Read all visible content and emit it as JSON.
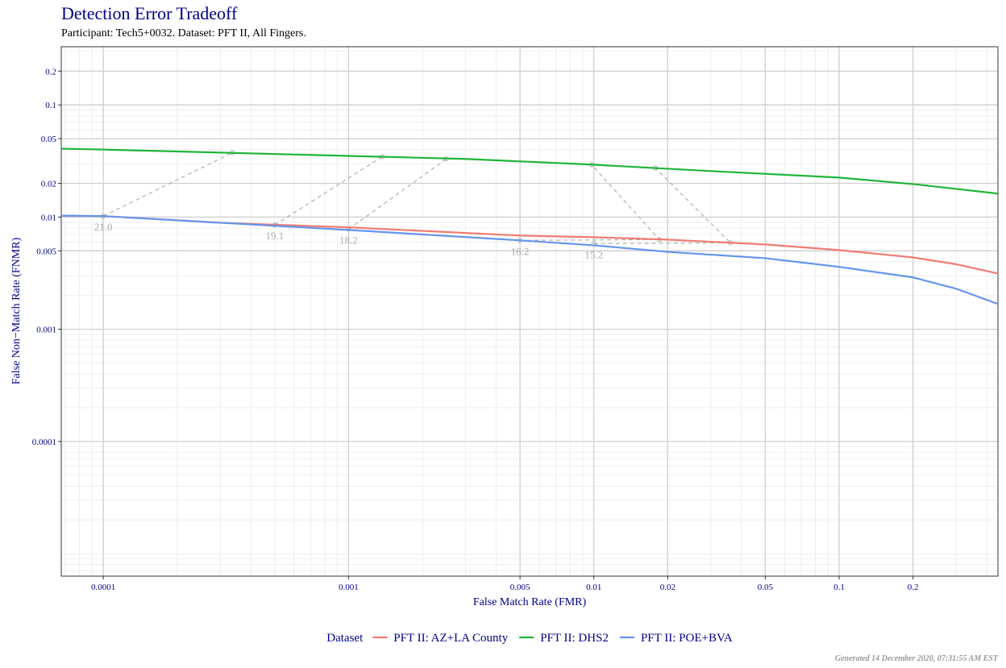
{
  "chart_data": {
    "type": "line",
    "title": "Detection Error Tradeoff",
    "subtitle": "Participant: Tech5+0032. Dataset: PFT II, All Fingers.",
    "x_label": "False Match Rate (FMR)",
    "y_label": "False Non−Match Rate (FNMR)",
    "x_log": true,
    "y_log": true,
    "grid": true,
    "xlim": [
      6.74e-05,
      0.444
    ],
    "ylim": [
      6.3e-06,
      0.33
    ],
    "xticks": [
      0.0001,
      0.001,
      0.005,
      0.01,
      0.02,
      0.05,
      0.1,
      0.2
    ],
    "yticks": [
      0.2,
      0.1,
      0.05,
      0.02,
      0.01,
      0.005,
      0.001,
      0.0001
    ],
    "legend_title": "Dataset",
    "legend_position": "bottom",
    "series": [
      {
        "name": "PFT II: AZ+LA County",
        "color": "#f07b73",
        "x": [
          6.74e-05,
          0.0001,
          0.0003,
          0.001,
          0.005,
          0.01,
          0.02,
          0.05,
          0.1,
          0.2,
          0.3,
          0.444
        ],
        "values": [
          0.0103,
          0.0102,
          0.0089,
          0.0081,
          0.00684,
          0.00662,
          0.0063,
          0.0057,
          0.00508,
          0.00437,
          0.0038,
          0.00314
        ]
      },
      {
        "name": "PFT II: DHS2",
        "color": "#1eb53a",
        "x": [
          6.74e-05,
          0.0001,
          0.001,
          0.003,
          0.01,
          0.03,
          0.1,
          0.2,
          0.444
        ],
        "values": [
          0.0407,
          0.04,
          0.0351,
          0.033,
          0.0293,
          0.0257,
          0.0225,
          0.0197,
          0.0162
        ]
      },
      {
        "name": "PFT II: POE+BVA",
        "color": "#6495ed",
        "x": [
          6.74e-05,
          0.0001,
          0.0003,
          0.001,
          0.005,
          0.01,
          0.02,
          0.05,
          0.1,
          0.2,
          0.3,
          0.444
        ],
        "values": [
          0.0103,
          0.0102,
          0.0089,
          0.00768,
          0.0062,
          0.0056,
          0.0049,
          0.0043,
          0.0036,
          0.0029,
          0.0023,
          0.00168
        ]
      }
    ],
    "thresholds": [
      {
        "label": "21.0",
        "x": [
          0.0001,
          0.000336
        ],
        "y": [
          0.0102,
          0.0375
        ]
      },
      {
        "label": "19.1",
        "x": [
          0.0005,
          0.00137
        ],
        "y": [
          0.0085,
          0.0345
        ]
      },
      {
        "label": "18.2",
        "x": [
          0.001,
          0.0025
        ],
        "y": [
          0.0078,
          0.0329
        ]
      },
      {
        "label": "16.2",
        "x": [
          0.005,
          0.0185,
          0.0098
        ],
        "y": [
          0.0062,
          0.0063,
          0.0293
        ]
      },
      {
        "label": "15.2",
        "x": [
          0.01,
          0.036,
          0.0178
        ],
        "y": [
          0.0058,
          0.0059,
          0.0274
        ]
      }
    ],
    "footer": "Generated 14 December 2020, 07:31:55 AM EST"
  }
}
